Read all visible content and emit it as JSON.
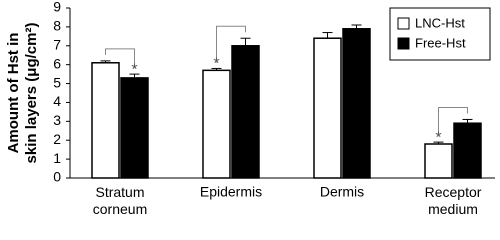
{
  "chart_data": {
    "type": "bar",
    "y_label": [
      "Amount of Hst in",
      "skin layers (μg/cm²)"
    ],
    "categories": [
      "Stratum corneum",
      "Epidermis",
      "Dermis",
      "Receptor medium"
    ],
    "series": [
      {
        "name": "LNC-Hst",
        "color": "#ffffff",
        "values": [
          6.1,
          5.7,
          7.4,
          1.8
        ],
        "errors": [
          0.1,
          0.1,
          0.3,
          0.1
        ]
      },
      {
        "name": "Free-Hst",
        "color": "#000000",
        "values": [
          5.3,
          7.0,
          7.9,
          2.9
        ],
        "errors": [
          0.2,
          0.4,
          0.2,
          0.2
        ]
      }
    ],
    "annotations": [
      {
        "text": "*",
        "category": 0,
        "series": 1
      },
      {
        "text": "*",
        "category": 1,
        "series": 0
      },
      {
        "text": "*",
        "category": 3,
        "series": 0
      }
    ],
    "ylim": [
      0,
      9
    ],
    "yticks": [
      0,
      1,
      2,
      3,
      4,
      5,
      6,
      7,
      8,
      9
    ],
    "legend": "top-right"
  }
}
